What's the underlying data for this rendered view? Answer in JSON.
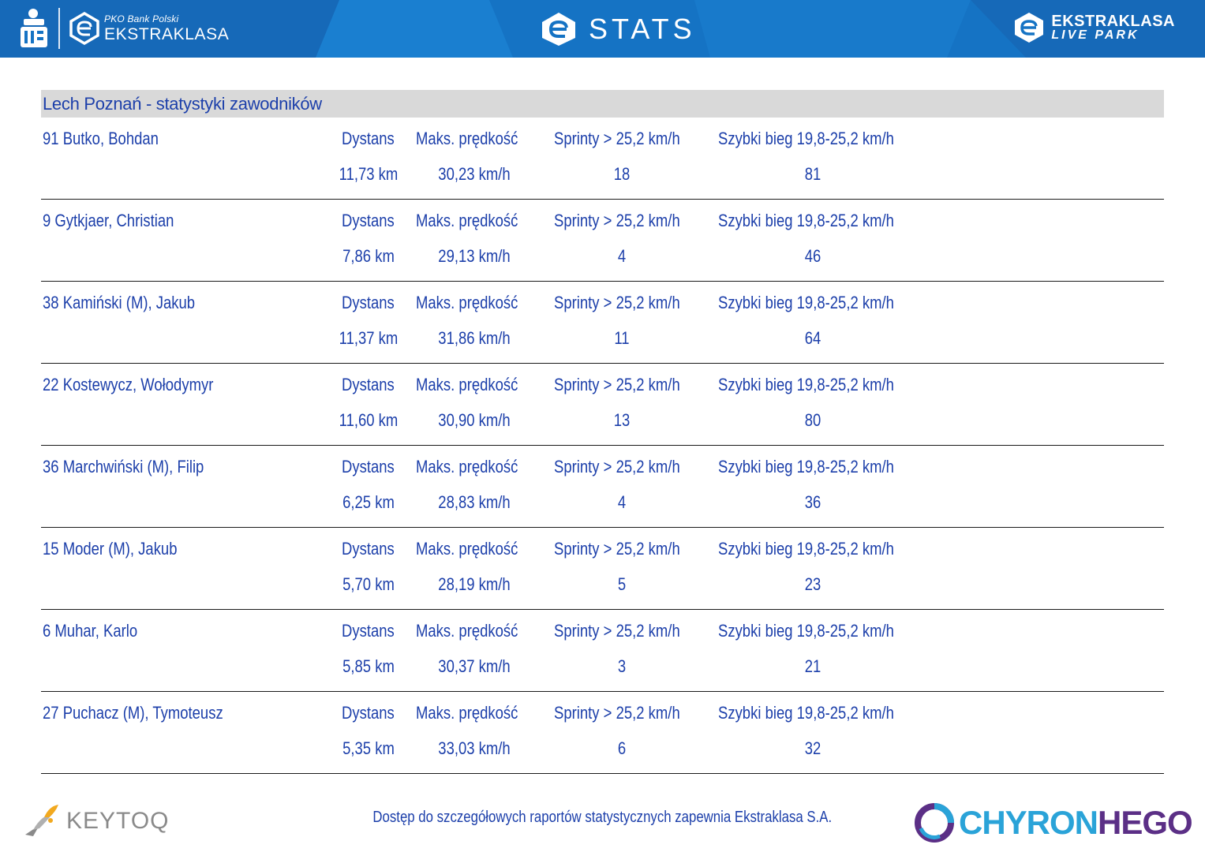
{
  "header": {
    "pko_small": "PKO Bank Polski",
    "pko_big": "EKSTRAKLASA",
    "title": "STATS",
    "live_line1": "EKSTRAKLASA",
    "live_line2": "LIVE PARK"
  },
  "team_title": "Lech Poznań - statystyki zawodników",
  "labels": {
    "distance": "Dystans",
    "max_speed": "Maks. prędkość",
    "sprints": "Sprinty > 25,2 km/h",
    "fast_run": "Szybki bieg 19,8-25,2 km/h"
  },
  "players": [
    {
      "name": "91  Butko, Bohdan",
      "distance": "11,73 km",
      "max_speed": "30,23 km/h",
      "sprints": "18",
      "fast_run": "81"
    },
    {
      "name": "9  Gytkjaer, Christian",
      "distance": "7,86 km",
      "max_speed": "29,13 km/h",
      "sprints": "4",
      "fast_run": "46"
    },
    {
      "name": "38  Kamiński (M), Jakub",
      "distance": "11,37 km",
      "max_speed": "31,86 km/h",
      "sprints": "11",
      "fast_run": "64"
    },
    {
      "name": "22  Kostewycz, Wołodymyr",
      "distance": "11,60 km",
      "max_speed": "30,90 km/h",
      "sprints": "13",
      "fast_run": "80"
    },
    {
      "name": "36  Marchwiński (M), Filip",
      "distance": "6,25 km",
      "max_speed": "28,83 km/h",
      "sprints": "4",
      "fast_run": "36"
    },
    {
      "name": "15  Moder (M), Jakub",
      "distance": "5,70 km",
      "max_speed": "28,19 km/h",
      "sprints": "5",
      "fast_run": "23"
    },
    {
      "name": "6  Muhar, Karlo",
      "distance": "5,85 km",
      "max_speed": "30,37 km/h",
      "sprints": "3",
      "fast_run": "21"
    },
    {
      "name": "27  Puchacz (M), Tymoteusz",
      "distance": "5,35 km",
      "max_speed": "33,03 km/h",
      "sprints": "6",
      "fast_run": "32"
    }
  ],
  "footer": {
    "note": "Dostęp do szczegółowych raportów statystycznych zapewnia Ekstraklasa S.A.",
    "keytoq": "KEYTOQ",
    "chyron_a": "CHYRON",
    "chyron_b": "HEGO"
  },
  "colors": {
    "header_blue": "#1573c4",
    "text_blue": "#1c3faa",
    "team_bar": "#d9d9d9"
  }
}
